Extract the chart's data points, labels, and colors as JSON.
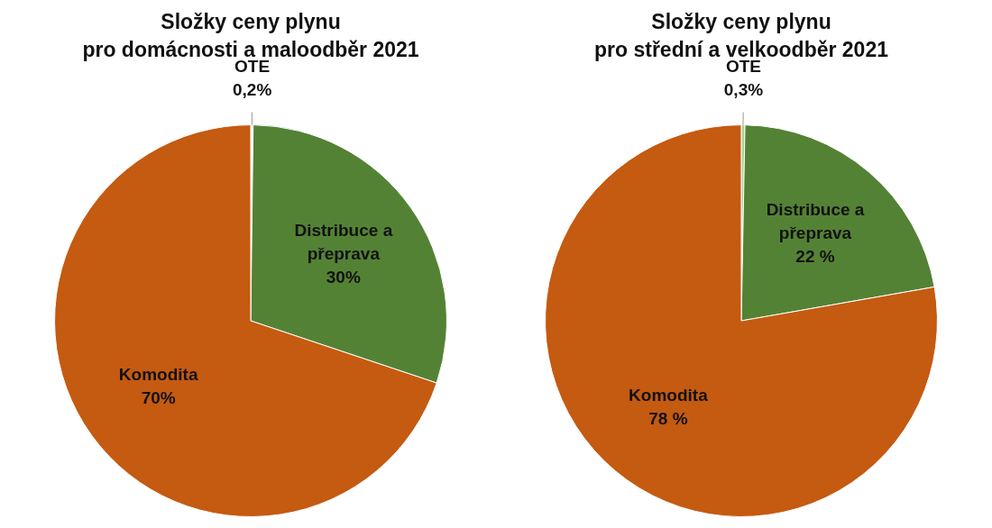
{
  "chart_data": [
    {
      "type": "pie",
      "title": "Složky ceny plynu\npro domácnosti a maloodběr 2021",
      "categories": [
        "OTE",
        "Distribuce a přeprava",
        "Komodita"
      ],
      "values": [
        0.2,
        30,
        70
      ],
      "value_labels": [
        "0,2%",
        "30%",
        "70%"
      ],
      "colors": [
        "#f2f2f2",
        "#548235",
        "#c55a11"
      ],
      "legend": false
    },
    {
      "type": "pie",
      "title": "Složky ceny plynu\npro střední a velkoodběr 2021",
      "categories": [
        "OTE",
        "Distribuce a přeprava",
        "Komodita"
      ],
      "values": [
        0.3,
        22,
        78
      ],
      "value_labels": [
        "0,3%",
        "22 %",
        "78 %"
      ],
      "colors": [
        "#a9d18e",
        "#548235",
        "#c55a11"
      ],
      "legend": false
    }
  ]
}
